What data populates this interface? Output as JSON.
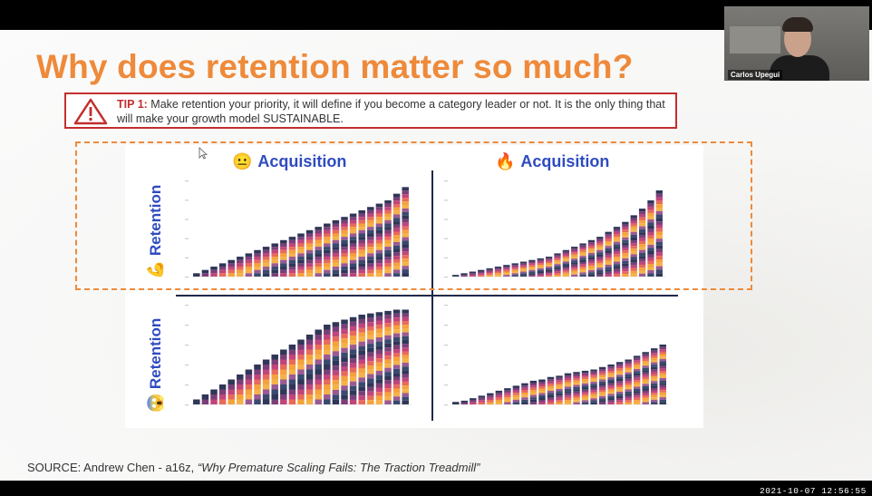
{
  "slide": {
    "title": "Why does retention matter so much?",
    "tip": {
      "label": "TIP 1:",
      "text": " Make retention your  priority, it will define if you become a category leader or not. It is the only thing that will make your growth model SUSTAINABLE."
    },
    "quadrants": {
      "col_labels": [
        "Acquisition",
        "Acquisition"
      ],
      "col_emojis": [
        "😐",
        "🔥"
      ],
      "row_labels": [
        "Retention",
        "Retention"
      ],
      "row_emojis": [
        "💪",
        "😱"
      ]
    },
    "source": {
      "prefix": "SOURCE: Andrew Chen - a16z, ",
      "title": "“Why Premature Scaling Fails: The Traction Treadmill”"
    }
  },
  "webcam": {
    "name": "Carlos Upegui"
  },
  "timestamp": "2021-10-07 12:56:55",
  "colors": {
    "title": "#ee8a3a",
    "accent_blue": "#2f4bc0",
    "tip_border": "#c42e2e",
    "band_palette": [
      "#2f3657",
      "#7a3f78",
      "#c0457a",
      "#e86a5a",
      "#f5a23c",
      "#f6b24a",
      "#9a5a92",
      "#3a4a6e"
    ]
  },
  "chart_data": [
    {
      "type": "bar",
      "title": "Acquisition 😐 / Retention 💪",
      "values": [
        2,
        4,
        6,
        8,
        10,
        12,
        14,
        16,
        18,
        20,
        22,
        24,
        26,
        28,
        30,
        32,
        34,
        36,
        38,
        40,
        42,
        44,
        46,
        50,
        54
      ]
    },
    {
      "type": "bar",
      "title": "Acquisition 🔥 / Retention 💪",
      "values": [
        1,
        2,
        3,
        4,
        5,
        6,
        7,
        8,
        9,
        10,
        11,
        12,
        14,
        16,
        18,
        20,
        22,
        24,
        27,
        30,
        33,
        37,
        41,
        46,
        52
      ]
    },
    {
      "type": "bar",
      "title": "Acquisition 😐 / Retention 😱",
      "values": [
        4,
        8,
        12,
        16,
        20,
        24,
        28,
        32,
        36,
        40,
        44,
        48,
        52,
        56,
        60,
        64,
        66,
        68,
        70,
        72,
        73,
        74,
        75,
        76,
        76
      ]
    },
    {
      "type": "bar",
      "title": "Acquisition 🔥 / Retention 😱",
      "values": [
        2,
        3,
        5,
        7,
        9,
        11,
        13,
        15,
        17,
        19,
        20,
        22,
        23,
        25,
        26,
        27,
        28,
        30,
        32,
        34,
        36,
        39,
        42,
        45,
        48
      ]
    }
  ]
}
